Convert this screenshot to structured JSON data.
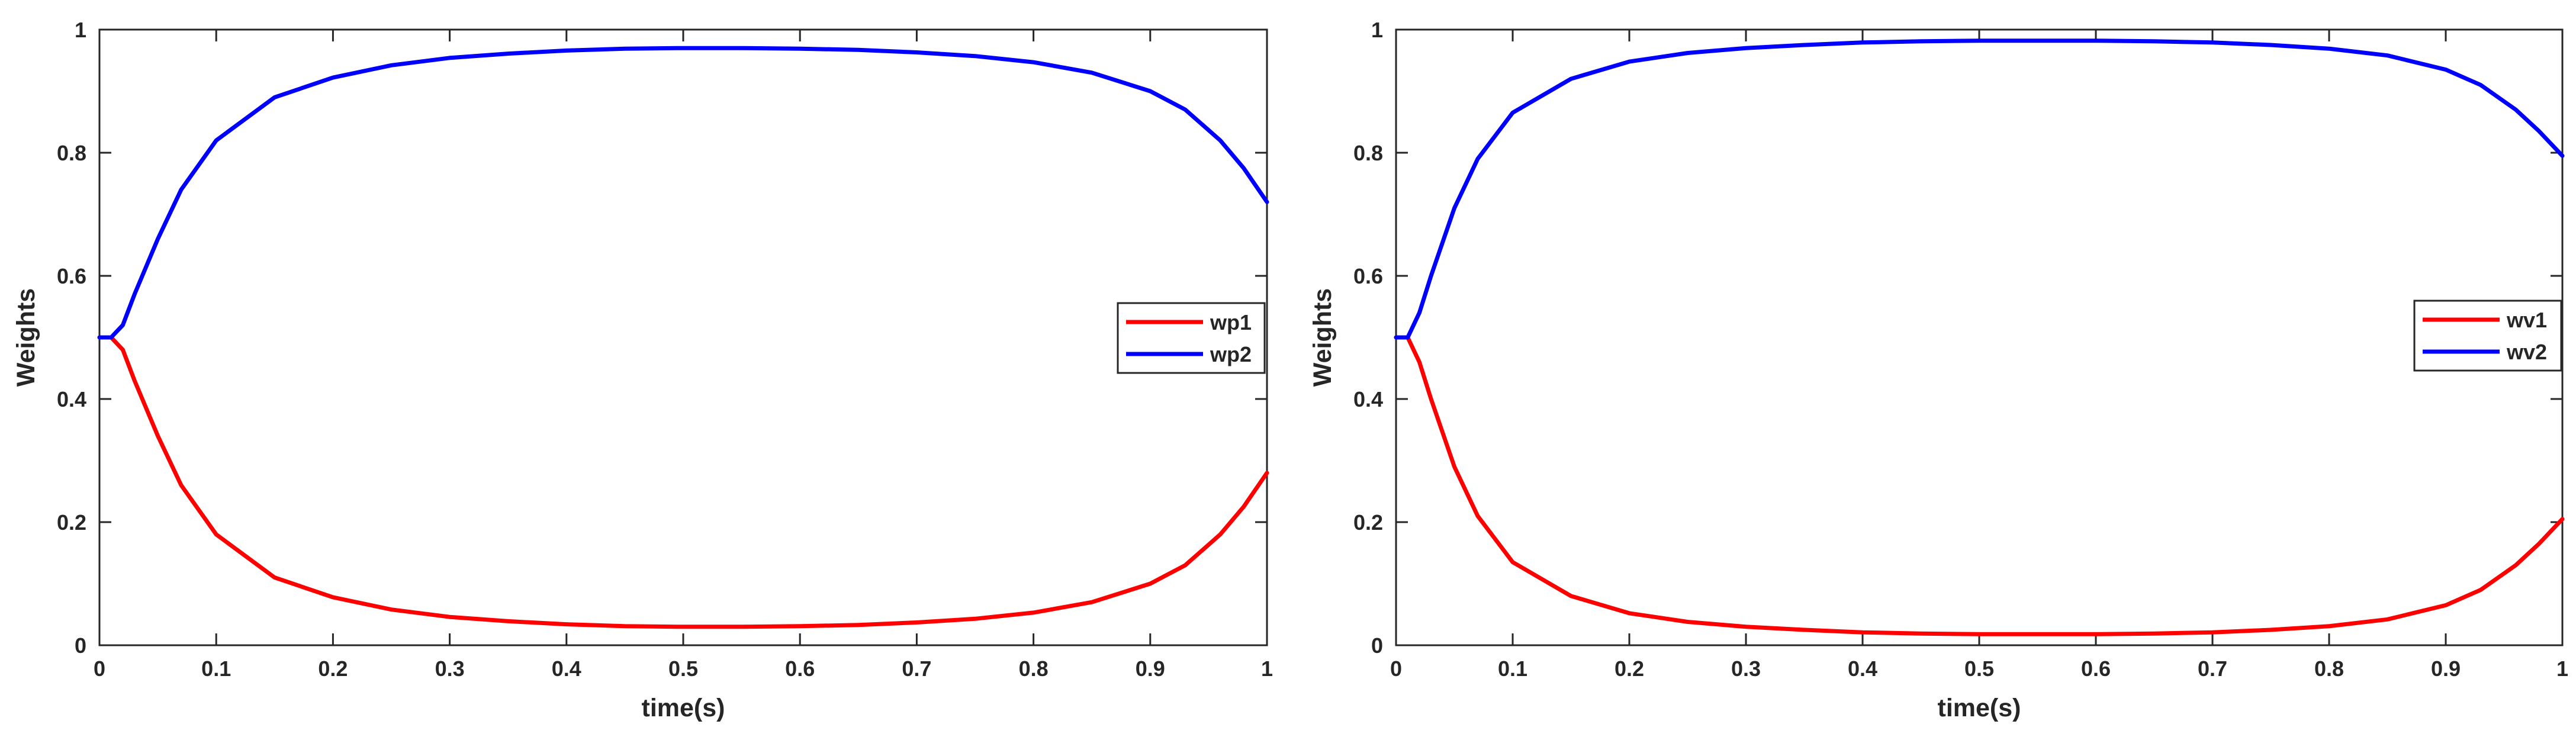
{
  "chart_data": [
    {
      "type": "line",
      "xlabel": "time(s)",
      "ylabel": "Weights",
      "xlim": [
        0,
        1
      ],
      "ylim": [
        0,
        1
      ],
      "xticks": [
        "0",
        "0.1",
        "0.2",
        "0.3",
        "0.4",
        "0.5",
        "0.6",
        "0.7",
        "0.8",
        "0.9",
        "1"
      ],
      "yticks": [
        "0",
        "0.2",
        "0.4",
        "0.6",
        "0.8",
        "1"
      ],
      "grid": false,
      "legend_position": "right",
      "series": [
        {
          "name": "wp1",
          "color": "#ff0000",
          "x": [
            0,
            0.01,
            0.02,
            0.03,
            0.05,
            0.07,
            0.1,
            0.15,
            0.2,
            0.25,
            0.3,
            0.35,
            0.4,
            0.45,
            0.5,
            0.55,
            0.6,
            0.65,
            0.7,
            0.75,
            0.8,
            0.85,
            0.9,
            0.93,
            0.96,
            0.98,
            1.0
          ],
          "y": [
            0.5,
            0.5,
            0.48,
            0.43,
            0.34,
            0.26,
            0.18,
            0.11,
            0.078,
            0.058,
            0.046,
            0.039,
            0.034,
            0.031,
            0.03,
            0.03,
            0.031,
            0.033,
            0.037,
            0.043,
            0.053,
            0.07,
            0.1,
            0.13,
            0.18,
            0.225,
            0.28
          ]
        },
        {
          "name": "wp2",
          "color": "#0000ff",
          "x": [
            0,
            0.01,
            0.02,
            0.03,
            0.05,
            0.07,
            0.1,
            0.15,
            0.2,
            0.25,
            0.3,
            0.35,
            0.4,
            0.45,
            0.5,
            0.55,
            0.6,
            0.65,
            0.7,
            0.75,
            0.8,
            0.85,
            0.9,
            0.93,
            0.96,
            0.98,
            1.0
          ],
          "y": [
            0.5,
            0.5,
            0.52,
            0.57,
            0.66,
            0.74,
            0.82,
            0.89,
            0.922,
            0.942,
            0.954,
            0.961,
            0.966,
            0.969,
            0.97,
            0.97,
            0.969,
            0.967,
            0.963,
            0.957,
            0.947,
            0.93,
            0.9,
            0.87,
            0.82,
            0.775,
            0.72
          ]
        }
      ]
    },
    {
      "type": "line",
      "xlabel": "time(s)",
      "ylabel": "Weights",
      "xlim": [
        0,
        1
      ],
      "ylim": [
        0,
        1
      ],
      "xticks": [
        "0",
        "0.1",
        "0.2",
        "0.3",
        "0.4",
        "0.5",
        "0.6",
        "0.7",
        "0.8",
        "0.9",
        "1"
      ],
      "yticks": [
        "0",
        "0.2",
        "0.4",
        "0.6",
        "0.8",
        "1"
      ],
      "grid": false,
      "legend_position": "right",
      "series": [
        {
          "name": "wv1",
          "color": "#ff0000",
          "x": [
            0,
            0.01,
            0.02,
            0.03,
            0.05,
            0.07,
            0.1,
            0.15,
            0.2,
            0.25,
            0.3,
            0.35,
            0.4,
            0.45,
            0.5,
            0.55,
            0.6,
            0.65,
            0.7,
            0.75,
            0.8,
            0.85,
            0.9,
            0.93,
            0.96,
            0.98,
            1.0
          ],
          "y": [
            0.5,
            0.5,
            0.46,
            0.4,
            0.29,
            0.21,
            0.135,
            0.08,
            0.052,
            0.038,
            0.03,
            0.025,
            0.021,
            0.019,
            0.018,
            0.018,
            0.018,
            0.019,
            0.021,
            0.025,
            0.031,
            0.042,
            0.065,
            0.09,
            0.13,
            0.165,
            0.205
          ]
        },
        {
          "name": "wv2",
          "color": "#0000ff",
          "x": [
            0,
            0.01,
            0.02,
            0.03,
            0.05,
            0.07,
            0.1,
            0.15,
            0.2,
            0.25,
            0.3,
            0.35,
            0.4,
            0.45,
            0.5,
            0.55,
            0.6,
            0.65,
            0.7,
            0.75,
            0.8,
            0.85,
            0.9,
            0.93,
            0.96,
            0.98,
            1.0
          ],
          "y": [
            0.5,
            0.5,
            0.54,
            0.6,
            0.71,
            0.79,
            0.865,
            0.92,
            0.948,
            0.962,
            0.97,
            0.975,
            0.979,
            0.981,
            0.982,
            0.982,
            0.982,
            0.981,
            0.979,
            0.975,
            0.969,
            0.958,
            0.935,
            0.91,
            0.87,
            0.835,
            0.795
          ]
        }
      ]
    }
  ]
}
